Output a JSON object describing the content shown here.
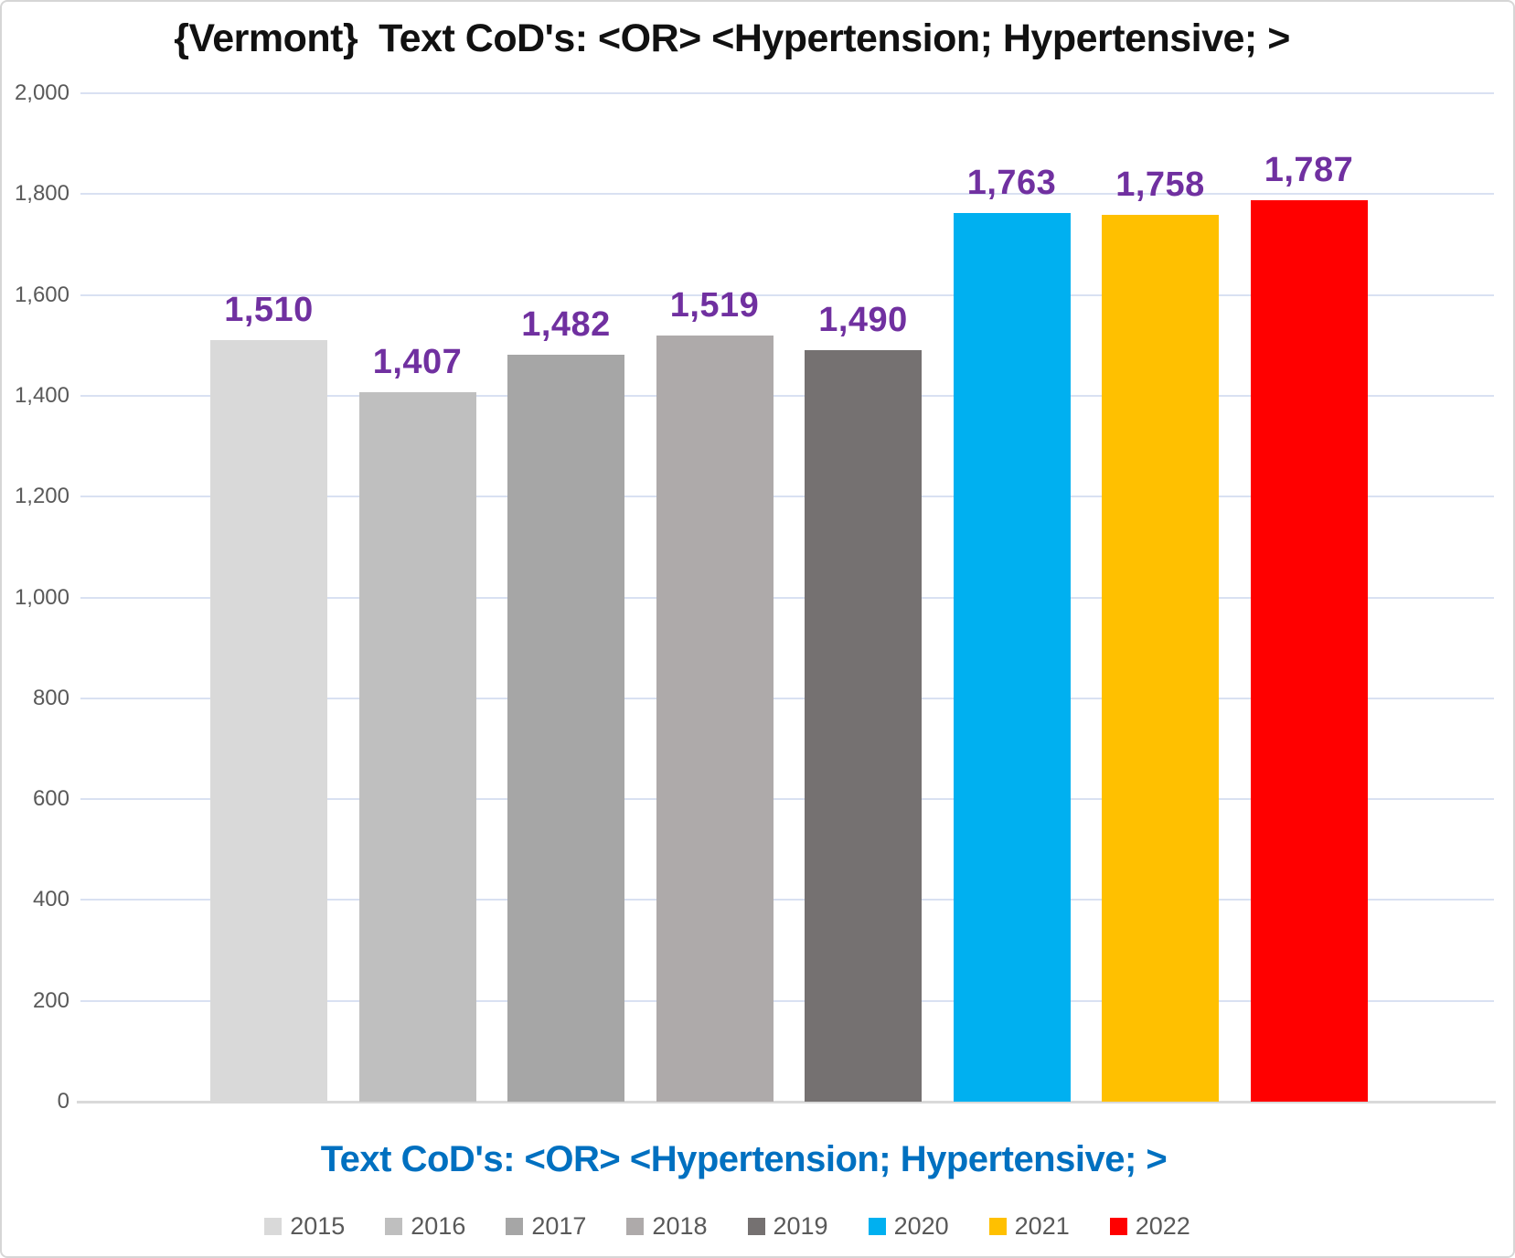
{
  "chart_data": {
    "type": "bar",
    "title": "{Vermont}  Text CoD's: <OR> <Hypertension; Hypertensive; >",
    "xlabel": "Text CoD's: <OR> <Hypertension; Hypertensive; >",
    "ylabel": "",
    "categories": [
      "2015",
      "2016",
      "2017",
      "2018",
      "2019",
      "2020",
      "2021",
      "2022"
    ],
    "values": [
      1510,
      1407,
      1482,
      1519,
      1490,
      1763,
      1758,
      1787
    ],
    "value_labels": [
      "1,510",
      "1,407",
      "1,482",
      "1,519",
      "1,490",
      "1,763",
      "1,758",
      "1,787"
    ],
    "bar_colors": [
      "#D9D9D9",
      "#BFBFBF",
      "#A6A6A6",
      "#AEAAAA",
      "#757171",
      "#00B0F0",
      "#FFC000",
      "#FF0000"
    ],
    "ylim": [
      0,
      2000
    ],
    "ytick_step": 200,
    "ytick_labels": [
      "0",
      "200",
      "400",
      "600",
      "800",
      "1,000",
      "1,200",
      "1,400",
      "1,600",
      "1,800",
      "2,000"
    ],
    "grid": true,
    "legend_position": "bottom",
    "colors": {
      "title_text": "#111111",
      "data_label": "#7030A0",
      "axis_title": "#0070C0",
      "tick_label": "#595959",
      "gridline": "#D9E1F2",
      "axis_line": "#D9D9D9",
      "legend_text": "#595959",
      "background": "#FFFFFF"
    }
  }
}
